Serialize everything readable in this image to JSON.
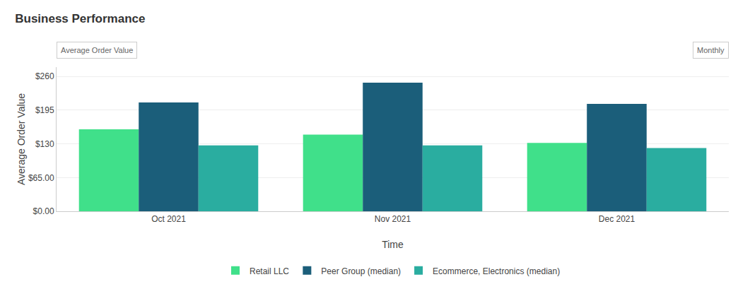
{
  "chart_data": {
    "type": "bar",
    "title": "Business Performance",
    "xlabel": "Time",
    "ylabel": "Average Order Value",
    "annotations": [
      "Average Order Value",
      "Monthly"
    ],
    "categories": [
      "Oct 2021",
      "Nov 2021",
      "Dec 2021"
    ],
    "series": [
      {
        "name": "Retail LLC",
        "color": "#40E08A",
        "values": [
          158,
          148,
          132
        ]
      },
      {
        "name": "Peer Group (median)",
        "color": "#1B5E7A",
        "values": [
          210,
          248,
          207
        ]
      },
      {
        "name": "Ecommerce, Electronics (median)",
        "color": "#2AADA0",
        "values": [
          127,
          127,
          122
        ]
      }
    ],
    "ylim": [
      0,
      278
    ],
    "yticks": [
      {
        "value": 0,
        "label": "$0.00"
      },
      {
        "value": 65,
        "label": "$65.00"
      },
      {
        "value": 130,
        "label": "$130"
      },
      {
        "value": 195,
        "label": "$195"
      },
      {
        "value": 260,
        "label": "$260"
      }
    ],
    "grid": true,
    "legend": "bottom"
  }
}
